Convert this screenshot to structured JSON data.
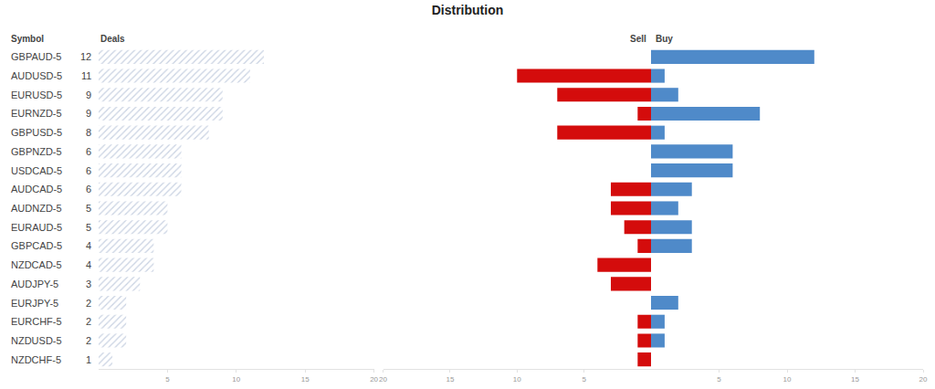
{
  "chart_data": [
    {
      "type": "bar",
      "title": "Distribution",
      "ylabel": "Symbol",
      "orientation": "horizontal",
      "categories": [
        "GBPAUD-5",
        "AUDUSD-5",
        "EURUSD-5",
        "EURNZD-5",
        "GBPUSD-5",
        "GBPNZD-5",
        "USDCAD-5",
        "AUDCAD-5",
        "AUDNZD-5",
        "EURAUD-5",
        "GBPCAD-5",
        "NZDCAD-5",
        "AUDJPY-5",
        "EURJPY-5",
        "EURCHF-5",
        "NZDUSD-5",
        "NZDCHF-5"
      ],
      "series": [
        {
          "name": "Deals",
          "color": "#aab7cf",
          "values": [
            12,
            11,
            9,
            9,
            8,
            6,
            6,
            6,
            5,
            5,
            4,
            4,
            3,
            2,
            2,
            2,
            1
          ]
        }
      ],
      "xlim": [
        0,
        20
      ],
      "xticks": [
        5,
        10,
        15,
        20
      ],
      "data_labels": true,
      "grid": false
    },
    {
      "type": "bar",
      "orientation": "horizontal",
      "tick_labels": "x",
      "categories": [
        "GBPAUD-5",
        "AUDUSD-5",
        "EURUSD-5",
        "EURNZD-5",
        "GBPUSD-5",
        "GBPNZD-5",
        "USDCAD-5",
        "AUDCAD-5",
        "AUDNZD-5",
        "EURAUD-5",
        "GBPCAD-5",
        "NZDCAD-5",
        "AUDJPY-5",
        "EURJPY-5",
        "EURCHF-5",
        "NZDUSD-5",
        "NZDCHF-5"
      ],
      "series": [
        {
          "name": "Sell",
          "color": "#d40c0c",
          "axis": "x2",
          "values": [
            0,
            10,
            7,
            1,
            7,
            0,
            0,
            3,
            3,
            2,
            1,
            4,
            3,
            0,
            1,
            1,
            1
          ]
        },
        {
          "name": "Buy",
          "color": "#4f8ac9",
          "values": [
            12,
            1,
            2,
            8,
            1,
            6,
            6,
            3,
            2,
            3,
            3,
            0,
            0,
            2,
            1,
            1,
            0
          ]
        }
      ],
      "xlim": [
        0,
        20
      ],
      "xticks": [
        5,
        10,
        15,
        20
      ],
      "x2lim": [
        20,
        0
      ],
      "x2ticks": [
        5,
        10,
        15,
        20
      ],
      "grid": false
    }
  ]
}
